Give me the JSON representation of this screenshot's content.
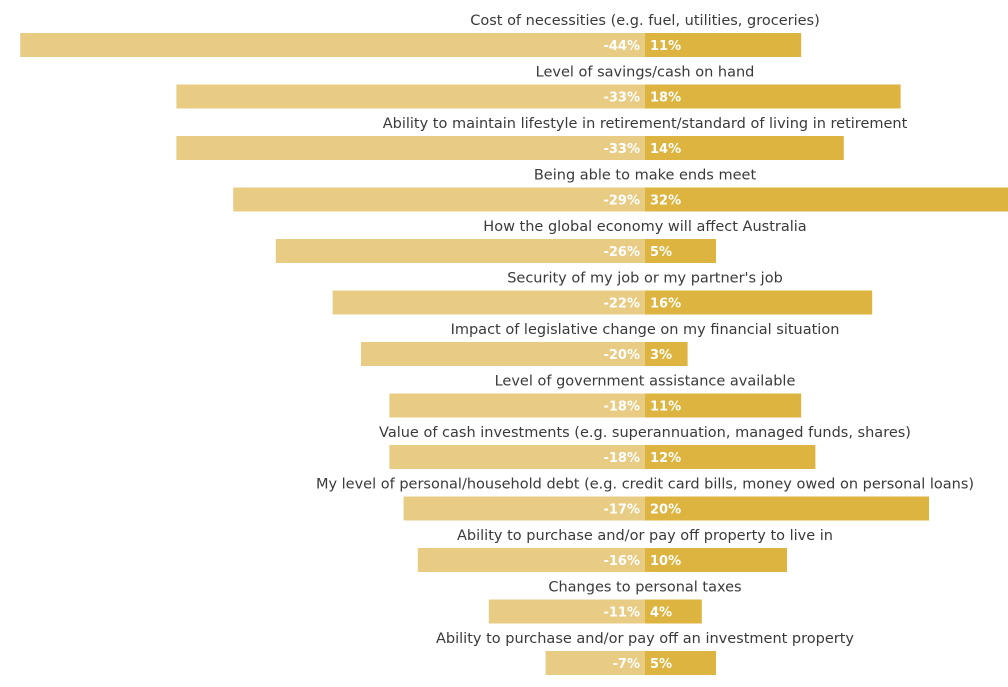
{
  "chart_data": {
    "type": "bar",
    "orientation": "horizontal-diverging",
    "categories": [
      "Cost of necessities (e.g. fuel, utilities, groceries)",
      "Level of savings/cash on hand",
      "Ability to maintain lifestyle in retirement/standard of living in retirement",
      "Being able to make ends meet",
      "How the global economy will affect Australia",
      "Security of my job or my partner's job",
      "Impact of legislative change on my financial situation",
      "Level of government assistance available",
      "Value of cash investments (e.g. superannuation, managed funds, shares)",
      "My level of personal/household debt (e.g. credit card bills, money owed on personal loans)",
      "Ability to purchase and/or pay off property to live in",
      "Changes to personal taxes",
      "Ability to purchase and/or pay off an investment property"
    ],
    "series": [
      {
        "values": [
          -44,
          -33,
          -33,
          -29,
          -26,
          -22,
          -20,
          -18,
          -18,
          -17,
          -16,
          -11,
          -7
        ],
        "labels": [
          "-44%",
          "-33%",
          "-33%",
          "-29%",
          "-26%",
          "-22%",
          "-20%",
          "-18%",
          "-18%",
          "-17%",
          "-16%",
          "-11%",
          "-7%"
        ],
        "color": "#E8CC84"
      },
      {
        "values": [
          11,
          18,
          14,
          32,
          5,
          16,
          3,
          11,
          12,
          20,
          10,
          4,
          5
        ],
        "labels": [
          "11%",
          "18%",
          "14%",
          "32%",
          "5%",
          "16%",
          "3%",
          "11%",
          "12%",
          "20%",
          "10%",
          "4%",
          "5%"
        ],
        "color": "#DDB43F"
      }
    ],
    "xlim": [
      -44,
      32
    ],
    "grid": false,
    "legend": "none"
  }
}
